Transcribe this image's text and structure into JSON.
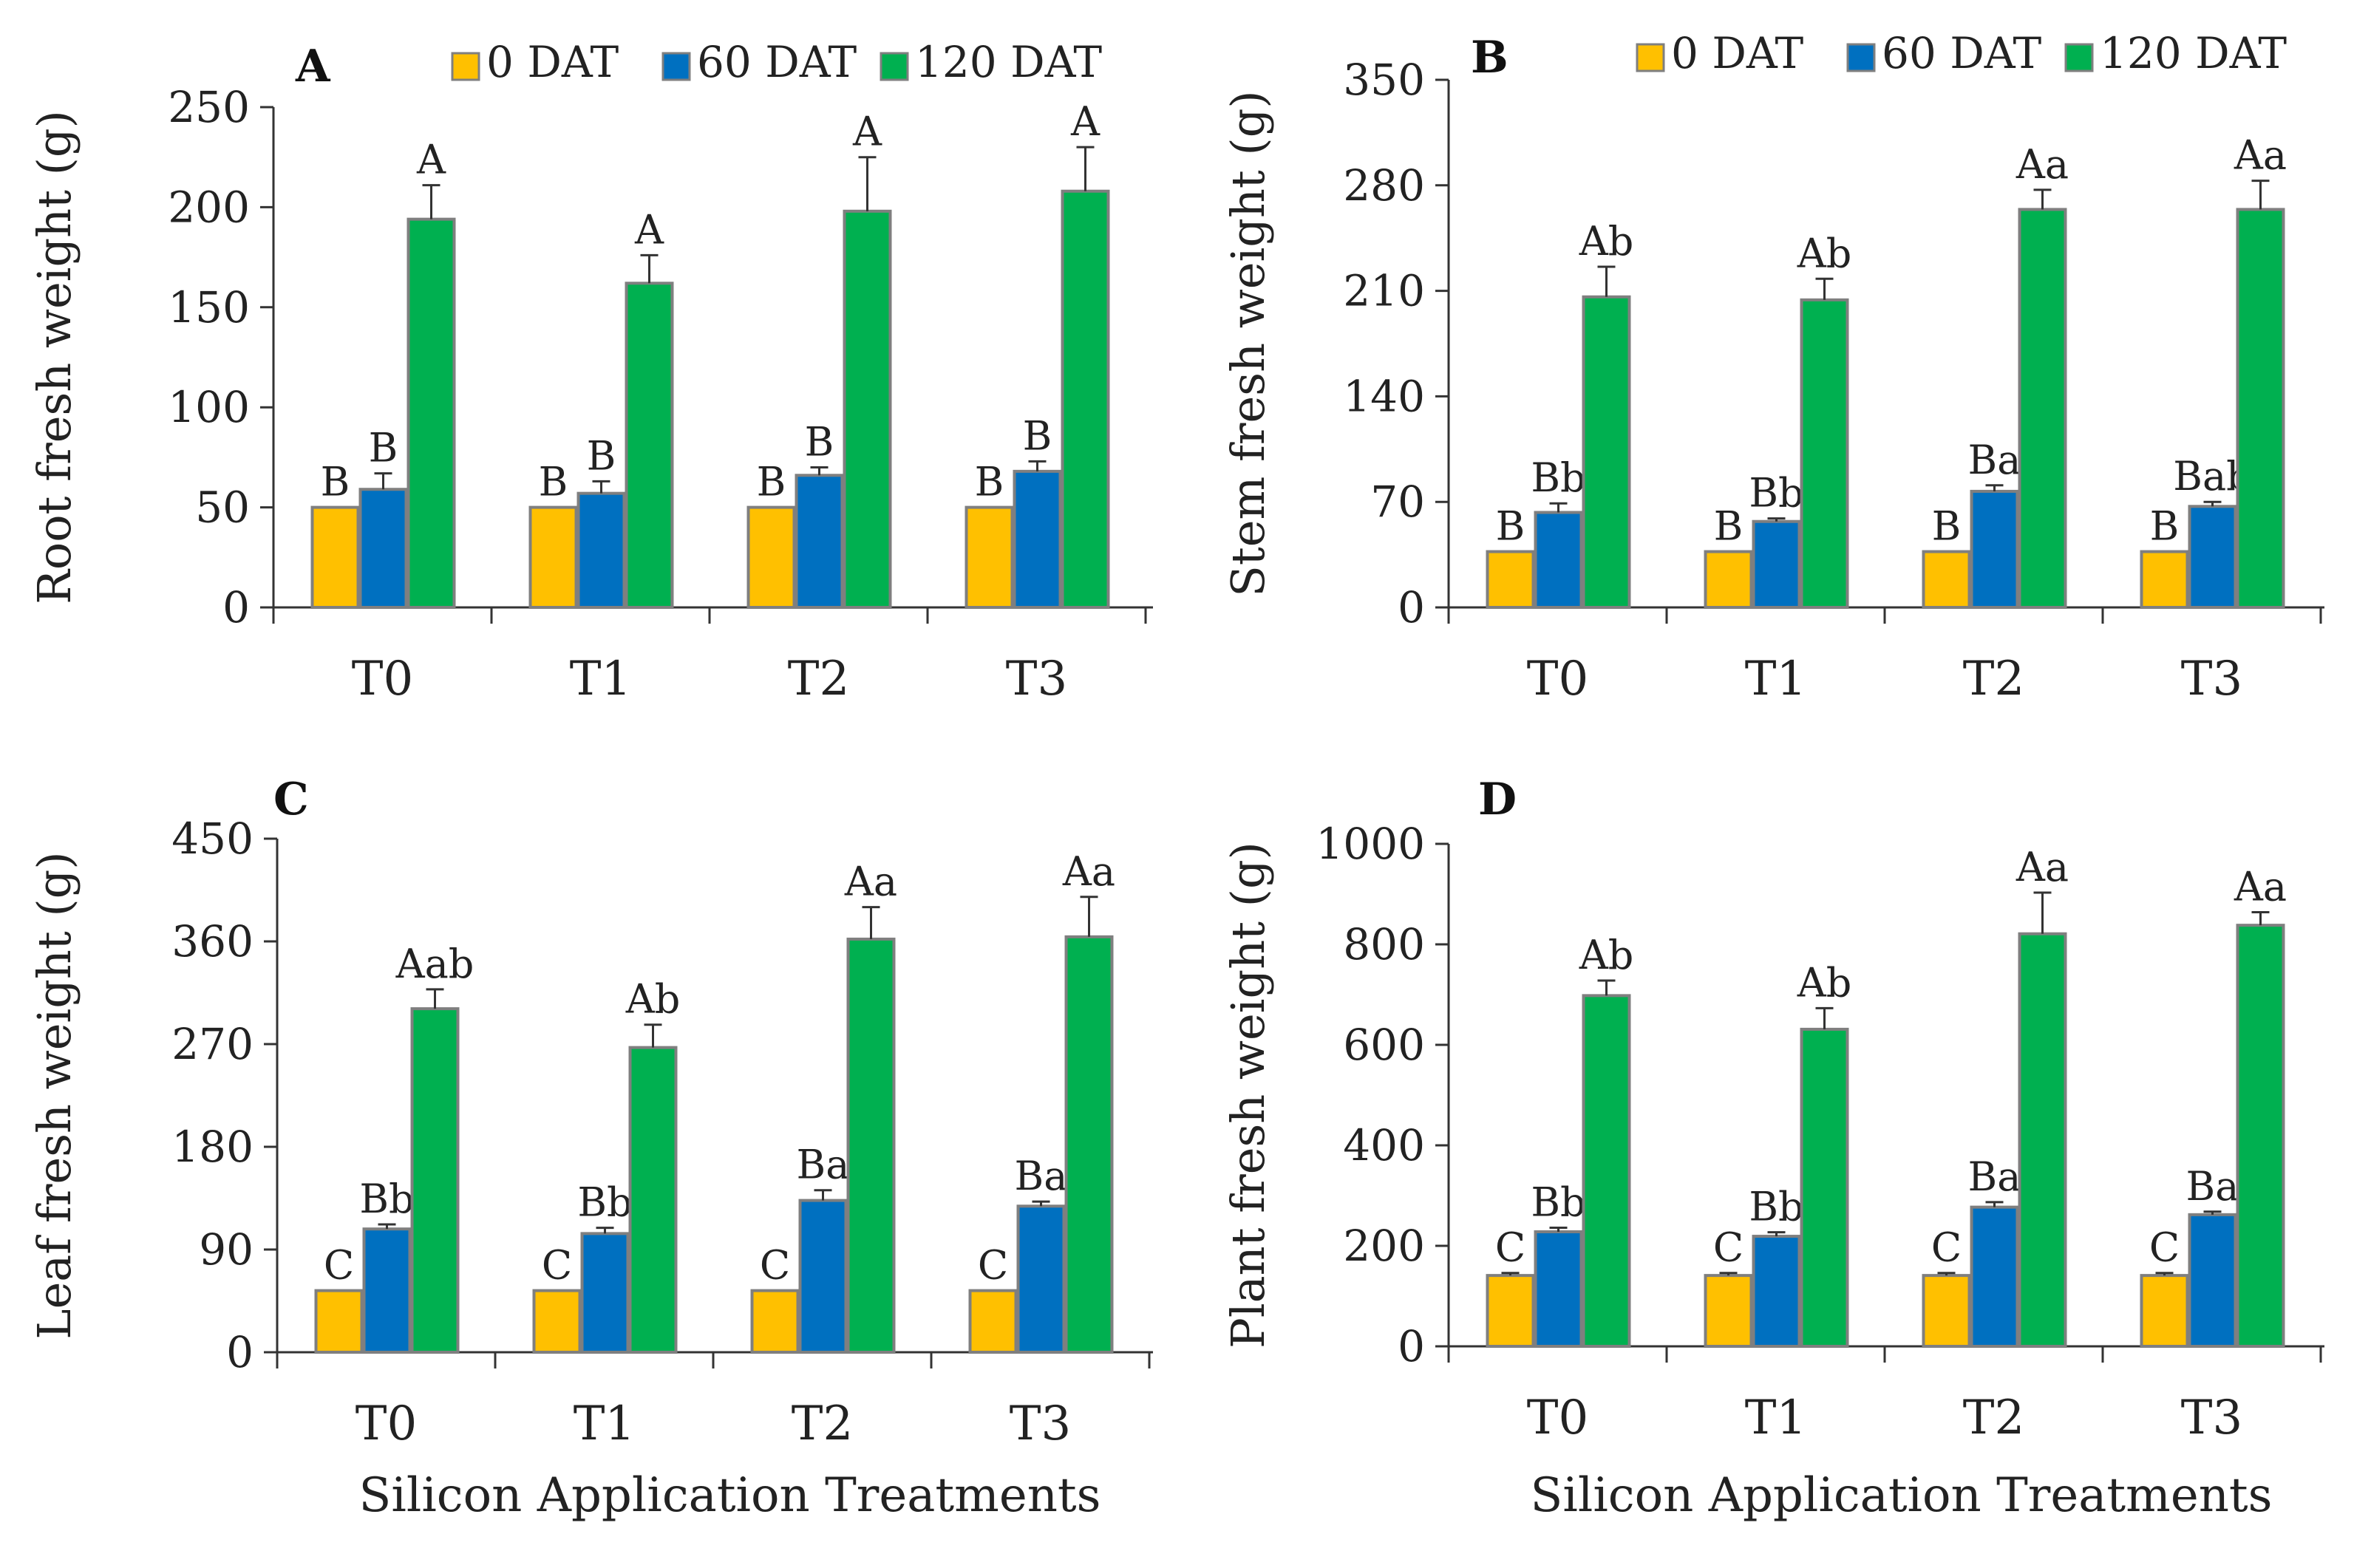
{
  "figure": {
    "legend_labels": [
      "0 DAT",
      "60 DAT",
      "120 DAT"
    ],
    "colors": [
      "#FFC000",
      "#0070C0",
      "#00B050"
    ],
    "bar_stroke": "#7F7F7F"
  },
  "chart_data": [
    {
      "type": "bar",
      "panel_label": "A",
      "ylabel": "Root fresh weight (g)",
      "xlabel": "",
      "categories": [
        "T0",
        "T1",
        "T2",
        "T3"
      ],
      "ylim": [
        0,
        250
      ],
      "yticks": [
        0,
        50,
        100,
        150,
        200,
        250
      ],
      "series": [
        {
          "name": "0 DAT",
          "values": [
            50,
            50,
            50,
            50
          ],
          "errors": [
            0,
            0,
            0,
            0
          ],
          "labels": [
            "B",
            "B",
            "B",
            "B"
          ]
        },
        {
          "name": "60 DAT",
          "values": [
            59,
            57,
            66,
            68
          ],
          "errors": [
            8,
            6,
            4,
            5
          ],
          "labels": [
            "B",
            "B",
            "B",
            "B"
          ]
        },
        {
          "name": "120 DAT",
          "values": [
            194,
            162,
            198,
            208
          ],
          "errors": [
            17,
            14,
            27,
            22
          ],
          "labels": [
            "A",
            "A",
            "A",
            "A"
          ]
        }
      ]
    },
    {
      "type": "bar",
      "panel_label": "B",
      "ylabel": "Stem fresh weight (g)",
      "xlabel": "",
      "categories": [
        "T0",
        "T1",
        "T2",
        "T3"
      ],
      "ylim": [
        0,
        350
      ],
      "yticks": [
        0,
        70,
        140,
        210,
        280,
        350
      ],
      "series": [
        {
          "name": "0 DAT",
          "values": [
            37,
            37,
            37,
            37
          ],
          "errors": [
            0,
            0,
            0,
            0
          ],
          "labels": [
            "B",
            "B",
            "B",
            "B"
          ]
        },
        {
          "name": "60 DAT",
          "values": [
            63,
            57,
            77,
            67
          ],
          "errors": [
            6,
            2,
            4,
            3
          ],
          "labels": [
            "Bb",
            "Bb",
            "Ba",
            "Bab"
          ]
        },
        {
          "name": "120 DAT",
          "values": [
            206,
            204,
            264,
            264
          ],
          "errors": [
            20,
            14,
            13,
            19
          ],
          "labels": [
            "Ab",
            "Ab",
            "Aa",
            "Aa"
          ]
        }
      ]
    },
    {
      "type": "bar",
      "panel_label": "C",
      "ylabel": "Leaf fresh weight (g)",
      "xlabel": "Silicon Application Treatments",
      "categories": [
        "T0",
        "T1",
        "T2",
        "T3"
      ],
      "ylim": [
        0,
        450
      ],
      "yticks": [
        0,
        90,
        180,
        270,
        360,
        450
      ],
      "series": [
        {
          "name": "0 DAT",
          "values": [
            54,
            54,
            54,
            54
          ],
          "errors": [
            0,
            0,
            0,
            0
          ],
          "labels": [
            "C",
            "C",
            "C",
            "C"
          ]
        },
        {
          "name": "60 DAT",
          "values": [
            108,
            104,
            133,
            128
          ],
          "errors": [
            4,
            5,
            9,
            4
          ],
          "labels": [
            "Bb",
            "Bb",
            "Ba",
            "Ba"
          ]
        },
        {
          "name": "120 DAT",
          "values": [
            301,
            267,
            362,
            364
          ],
          "errors": [
            17,
            20,
            28,
            35
          ],
          "labels": [
            "Aab",
            "Ab",
            "Aa",
            "Aa"
          ]
        }
      ]
    },
    {
      "type": "bar",
      "panel_label": "D",
      "ylabel": "Plant fresh weight  (g)",
      "xlabel": "Silicon Application Treatments",
      "categories": [
        "T0",
        "T1",
        "T2",
        "T3"
      ],
      "ylim": [
        0,
        1000
      ],
      "yticks": [
        0,
        200,
        400,
        600,
        800,
        1000
      ],
      "series": [
        {
          "name": "0 DAT",
          "values": [
            141,
            141,
            141,
            141
          ],
          "errors": [
            5,
            5,
            5,
            5
          ],
          "labels": [
            "C",
            "C",
            "C",
            "C"
          ]
        },
        {
          "name": "60 DAT",
          "values": [
            228,
            219,
            277,
            262
          ],
          "errors": [
            8,
            8,
            10,
            6
          ],
          "labels": [
            "Bb",
            "Bb",
            "Ba",
            "Ba"
          ]
        },
        {
          "name": "120 DAT",
          "values": [
            698,
            631,
            821,
            838
          ],
          "errors": [
            30,
            42,
            82,
            26
          ],
          "labels": [
            "Ab",
            "Ab",
            "Aa",
            "Aa"
          ]
        }
      ]
    }
  ]
}
